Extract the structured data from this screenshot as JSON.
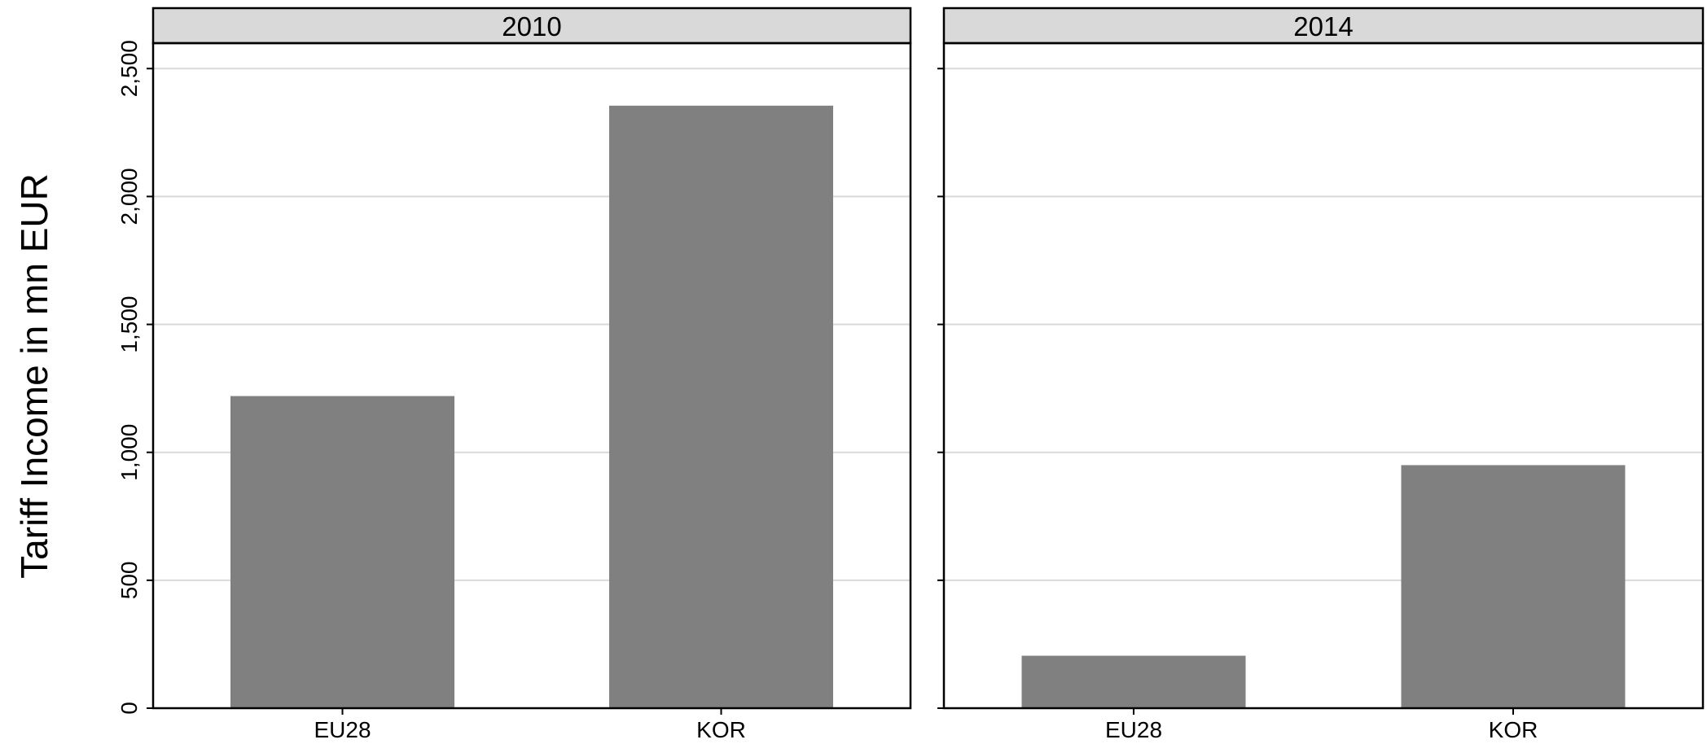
{
  "chart_data": {
    "type": "bar",
    "ylabel": "Tariff Income in mn EUR",
    "ylim": [
      0,
      2600
    ],
    "y_ticks": [
      {
        "value": 0,
        "label": "0"
      },
      {
        "value": 500,
        "label": "500"
      },
      {
        "value": 1000,
        "label": "1,000"
      },
      {
        "value": 1500,
        "label": "1,500"
      },
      {
        "value": 2000,
        "label": "2,000"
      },
      {
        "value": 2500,
        "label": "2,500"
      }
    ],
    "grid": true,
    "bar_color": "#808080",
    "categories": [
      "EU28",
      "KOR"
    ],
    "panels": [
      {
        "title": "2010",
        "values": [
          1220,
          2355
        ]
      },
      {
        "title": "2014",
        "values": [
          205,
          950
        ]
      }
    ]
  }
}
